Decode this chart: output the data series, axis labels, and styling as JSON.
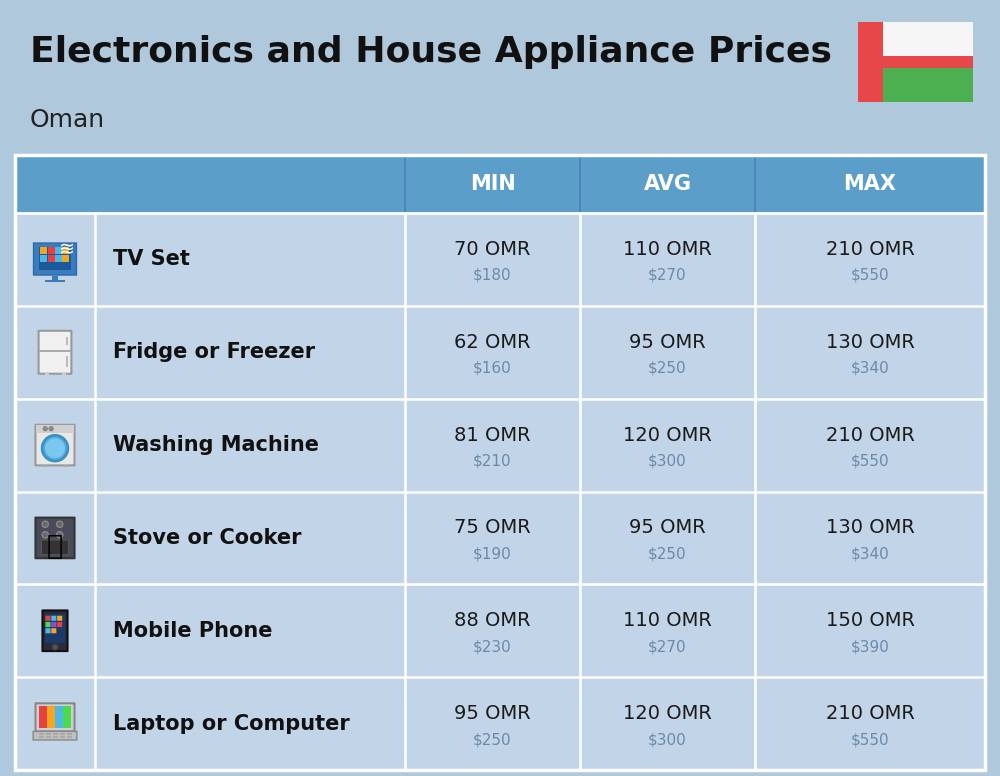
{
  "title": "Electronics and House Appliance Prices",
  "subtitle": "Oman",
  "bg_color": "#b0c8dc",
  "header_color": "#5b9ec9",
  "header_text_color": "#ffffff",
  "row_bg_color": "#c2d5e8",
  "col_divider_color": "#ffffff",
  "row_divider_color": "#ffffff",
  "omr_color": "#1a1a1a",
  "usd_color": "#6a8aaa",
  "name_color": "#111111",
  "items": [
    {
      "name": "TV Set",
      "min_omr": "70 OMR",
      "min_usd": "$180",
      "avg_omr": "110 OMR",
      "avg_usd": "$270",
      "max_omr": "210 OMR",
      "max_usd": "$550"
    },
    {
      "name": "Fridge or Freezer",
      "min_omr": "62 OMR",
      "min_usd": "$160",
      "avg_omr": "95 OMR",
      "avg_usd": "$250",
      "max_omr": "130 OMR",
      "max_usd": "$340"
    },
    {
      "name": "Washing Machine",
      "min_omr": "81 OMR",
      "min_usd": "$210",
      "avg_omr": "120 OMR",
      "avg_usd": "$300",
      "max_omr": "210 OMR",
      "max_usd": "$550"
    },
    {
      "name": "Stove or Cooker",
      "min_omr": "75 OMR",
      "min_usd": "$190",
      "avg_omr": "95 OMR",
      "avg_usd": "$250",
      "max_omr": "130 OMR",
      "max_usd": "$340"
    },
    {
      "name": "Mobile Phone",
      "min_omr": "88 OMR",
      "min_usd": "$230",
      "avg_omr": "110 OMR",
      "avg_usd": "$270",
      "max_omr": "150 OMR",
      "max_usd": "$390"
    },
    {
      "name": "Laptop or Computer",
      "min_omr": "95 OMR",
      "min_usd": "$250",
      "avg_omr": "120 OMR",
      "avg_usd": "$300",
      "max_omr": "210 OMR",
      "max_usd": "$550"
    }
  ]
}
